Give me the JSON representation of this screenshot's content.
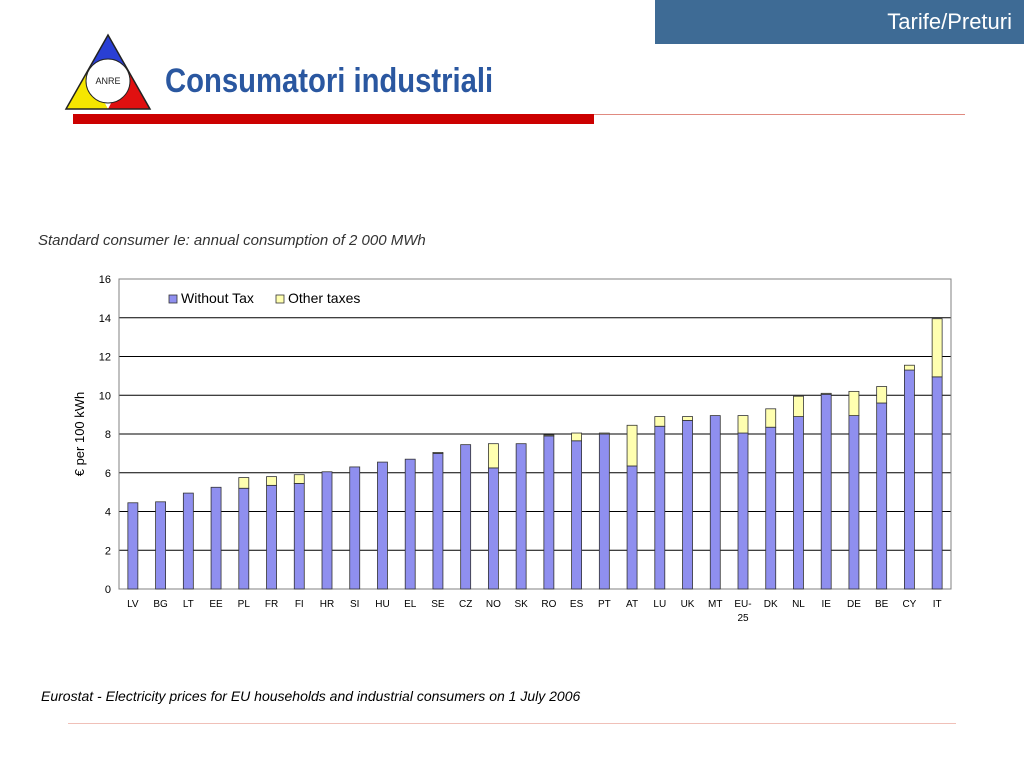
{
  "header": {
    "tag": "Tarife/Preturi",
    "title": "Consumatori industriali",
    "logo_text": "ANRE"
  },
  "chart_heading": "Standard consumer Ie: annual consumption of 2 000 MWh",
  "source": "Eurostat - Electricity prices for EU households and industrial consumers on 1 July 2006",
  "colors": {
    "without_tax": "#8f8fef",
    "other_taxes": "#ffffb0",
    "header_blue": "#3e6b95",
    "title_blue": "#2a57a0",
    "red_bar": "#cc0000"
  },
  "chart_data": {
    "type": "bar",
    "stacked": true,
    "title": "Standard consumer Ie: annual consumption of 2 000 MWh",
    "xlabel": "",
    "ylabel": "€ per 100 kWh",
    "ylim": [
      0,
      16
    ],
    "yticks": [
      0,
      2,
      4,
      6,
      8,
      10,
      12,
      14,
      16
    ],
    "grid": true,
    "legend": "top-left",
    "categories": [
      "LV",
      "BG",
      "LT",
      "EE",
      "PL",
      "FR",
      "FI",
      "HR",
      "SI",
      "HU",
      "EL",
      "SE",
      "CZ",
      "NO",
      "SK",
      "RO",
      "ES",
      "PT",
      "AT",
      "LU",
      "UK",
      "MT",
      "EU-25",
      "DK",
      "NL",
      "IE",
      "DE",
      "BE",
      "CY",
      "IT"
    ],
    "series": [
      {
        "name": "Without Tax",
        "color": "#8f8fef",
        "values": [
          4.45,
          4.5,
          4.95,
          5.25,
          5.2,
          5.35,
          5.45,
          6.05,
          6.3,
          6.55,
          6.7,
          7.0,
          7.45,
          6.25,
          7.5,
          7.9,
          7.65,
          8.0,
          6.35,
          8.4,
          8.7,
          8.95,
          8.05,
          8.35,
          8.9,
          10.05,
          8.95,
          9.6,
          11.3,
          10.95
        ]
      },
      {
        "name": "Other taxes",
        "color": "#ffffb0",
        "values": [
          0,
          0,
          0,
          0,
          0.55,
          0.45,
          0.45,
          0,
          0,
          0,
          0,
          0.05,
          0,
          1.25,
          0,
          0.05,
          0.4,
          0.05,
          2.1,
          0.5,
          0.2,
          0,
          0.9,
          0.95,
          1.05,
          0.05,
          1.25,
          0.85,
          0.25,
          3.0
        ]
      }
    ]
  }
}
